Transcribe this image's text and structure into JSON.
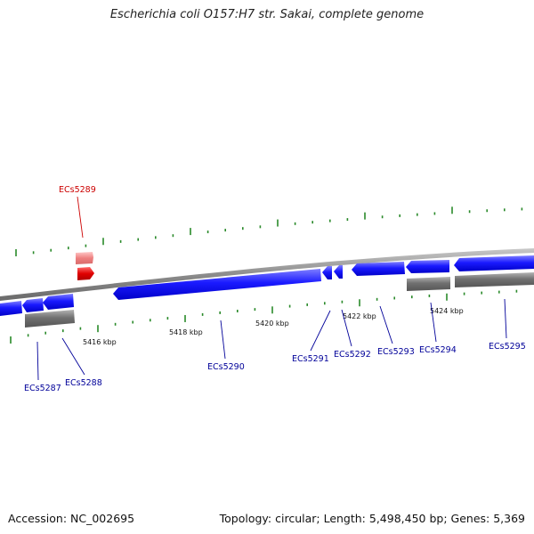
{
  "title": "Escherichia coli O157:H7 str. Sakai, complete genome",
  "footer": {
    "accession": "Accession: NC_002695",
    "summary": "Topology: circular; Length: 5,498,450 bp; Genes: 5,369"
  },
  "colors": {
    "highlight_gene": "#dd0000",
    "highlight_label": "#cc0000",
    "gene": "#1a1aff",
    "gene_label": "#000099",
    "rna": "#707070",
    "backbone": "#8c8c8c",
    "tick": "#2a8a2a"
  },
  "scale_labels": [
    "5416 kbp",
    "5418 kbp",
    "5420 kbp",
    "5422 kbp",
    "5424 kbp"
  ],
  "genes": [
    {
      "name": "ECs5287",
      "highlight": false
    },
    {
      "name": "ECs5288",
      "highlight": false
    },
    {
      "name": "ECs5289",
      "highlight": true
    },
    {
      "name": "ECs5290",
      "highlight": false
    },
    {
      "name": "ECs5291",
      "highlight": false
    },
    {
      "name": "ECs5292",
      "highlight": false
    },
    {
      "name": "ECs5293",
      "highlight": false
    },
    {
      "name": "ECs5294",
      "highlight": false
    },
    {
      "name": "ECs5295",
      "highlight": false
    }
  ]
}
